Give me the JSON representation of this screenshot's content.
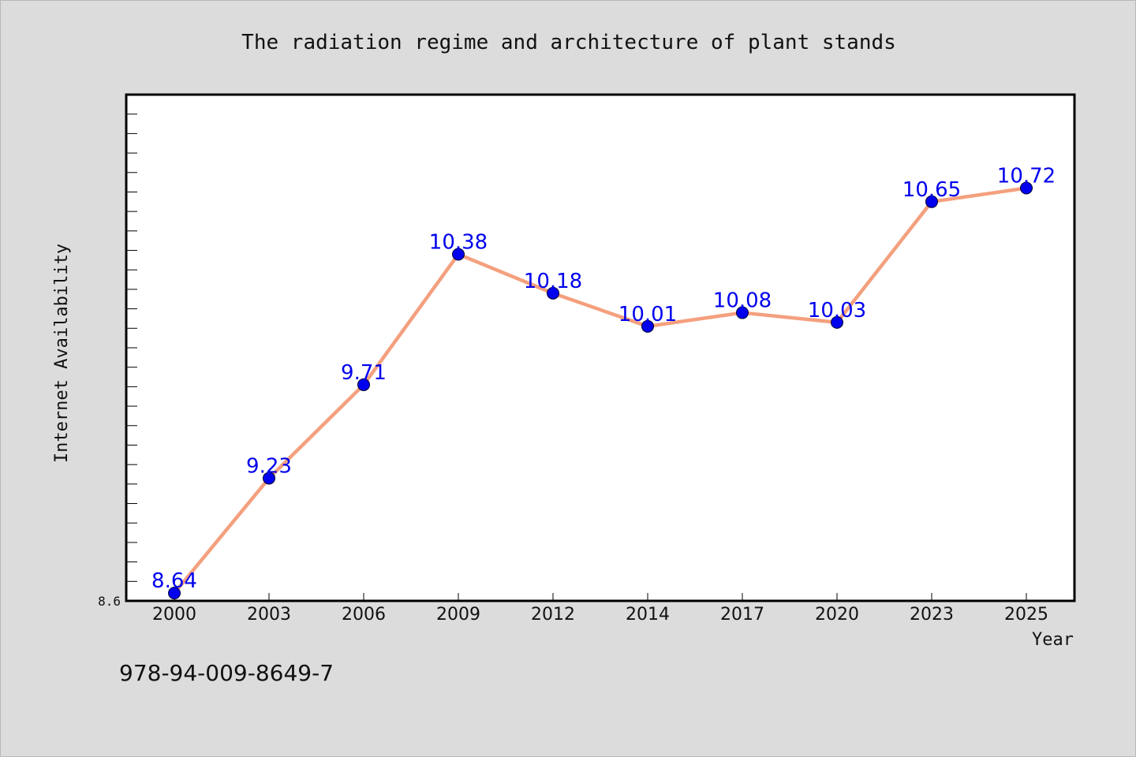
{
  "title": "The radiation regime and architecture of plant stands",
  "footer_text": "978-94-009-8649-7",
  "colors": {
    "background": "#dcdcdc",
    "plot_background": "#ffffff",
    "line": "#f4a07e",
    "marker": "#0000ee",
    "data_label": "#0000ee",
    "axis": "#000000"
  },
  "chart_data": {
    "type": "line",
    "title": "The radiation regime and architecture of plant stands",
    "xlabel": "Year",
    "ylabel": "Internet Availability",
    "categories": [
      "2000",
      "2003",
      "2006",
      "2009",
      "2012",
      "2014",
      "2017",
      "2020",
      "2023",
      "2025"
    ],
    "series": [
      {
        "values": [
          8.64,
          9.23,
          9.71,
          10.38,
          10.18,
          10.01,
          10.08,
          10.03,
          10.65,
          10.72
        ],
        "labels": [
          "8.64",
          "9.23",
          "9.71",
          "10.38",
          "10.18",
          "10.01",
          "10.08",
          "10.03",
          "10.65",
          "10.72"
        ]
      }
    ],
    "ylim": [
      8.6,
      11.2
    ],
    "y_tick_labels": [
      "8.6"
    ],
    "y_minor_tick_step": 0.1,
    "grid": false,
    "legend": "none",
    "marker": "filled-circle"
  }
}
